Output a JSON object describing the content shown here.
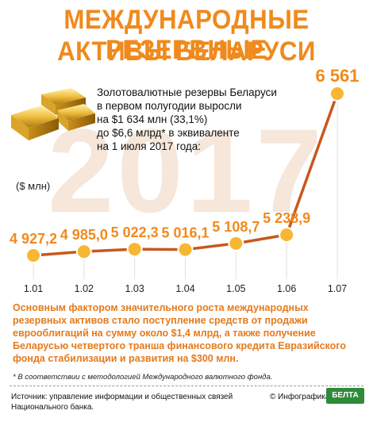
{
  "title": {
    "line1": "МЕЖДУНАРОДНЫЕ РЕЗЕРВНЫЕ",
    "line2": "АКТИВЫ БЕЛАРУСИ"
  },
  "background_year": "2017",
  "intro_lines": [
    "Золотовалютные резервы Беларуси",
    "в первом полугодии выросли",
    "на $1 634 млн (33,1%)",
    "до $6,6 млрд* в эквиваленте",
    "на 1 июля 2017 года:"
  ],
  "unit_label": "($ млн)",
  "note": "Основным фактором значительного роста международных резервных активов стало поступление средств от продажи еврооблигаций на сумму около $1,4 млрд, а также получение Беларусью четвертого транша финансового кредита Евразийского фонда стабилизации и развития на $300 млн.",
  "footnote": "* В соответствии с методологией Международного валютного фонда.",
  "source": "Источник: управление информации и общественных связей Национального банка.",
  "credit": "© Инфографика",
  "logo_text": "БЕЛТА",
  "colors": {
    "accent": "#f08a1c",
    "line": "#c8581c",
    "marker": "#f7b733",
    "tick": "#e0e0e0",
    "logo": "#2e8b3a"
  },
  "chart_data": {
    "type": "line",
    "categories": [
      "1.01",
      "1.02",
      "1.03",
      "1.04",
      "1.05",
      "1.06",
      "1.07"
    ],
    "value_labels": [
      "4 927,2",
      "4 985,0",
      "5 022,3",
      "5 016,1",
      "5 108,7",
      "5 238,9",
      "6 561"
    ],
    "series": [
      {
        "values": [
          4927.2,
          4985.0,
          5022.3,
          5016.1,
          5108.7,
          5238.9,
          6561
        ]
      }
    ],
    "ylabel": "($ млн)",
    "grid": false
  }
}
